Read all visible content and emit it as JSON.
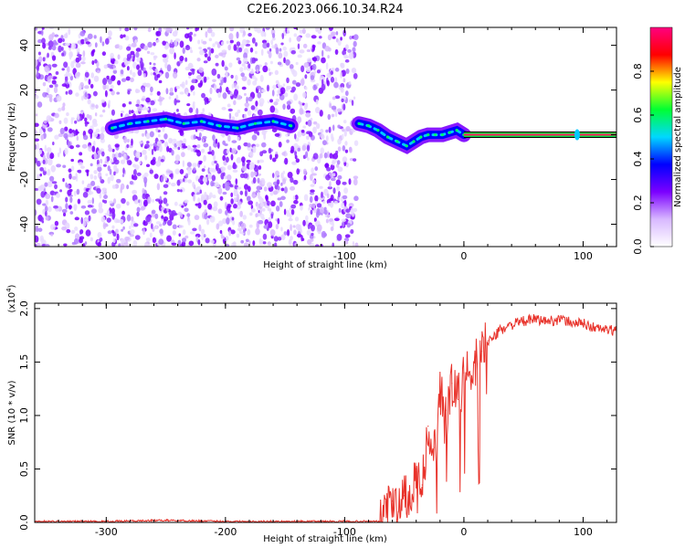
{
  "title": "C2E6.2023.066.10.34.R24",
  "chart_data": [
    {
      "type": "heatmap",
      "xlabel": "Height of straight line (km)",
      "ylabel": "Frequency (Hz)",
      "xlim": [
        -360,
        128
      ],
      "ylim": [
        -50,
        48
      ],
      "x_ticks": [
        "-300",
        "-200",
        "-100",
        "0",
        "100"
      ],
      "x_tick_values": [
        -300,
        -200,
        -100,
        0,
        100
      ],
      "y_ticks": [
        "-40",
        "-20",
        "0",
        "20",
        "40"
      ],
      "y_tick_values": [
        -40,
        -20,
        0,
        20,
        40
      ],
      "noise_region_x": [
        -360,
        -90
      ],
      "first_trace": {
        "x": [
          -295,
          -280,
          -265,
          -250,
          -235,
          -220,
          -205,
          -190,
          -175,
          -160,
          -145
        ],
        "y": [
          3,
          5,
          6,
          7,
          5,
          6,
          4,
          3,
          5,
          6,
          4
        ]
      },
      "second_trace": {
        "x": [
          -88,
          -80,
          -72,
          -64,
          -56,
          -48,
          -42,
          -36,
          -30,
          -24,
          -18,
          -12,
          -6,
          0
        ],
        "y": [
          5,
          4,
          2,
          -1,
          -3,
          -5,
          -3,
          -1,
          0,
          0,
          0,
          1,
          2,
          0
        ]
      },
      "steady_line": {
        "x": [
          0,
          128
        ],
        "y": 0
      },
      "blip": {
        "x": 95,
        "y": 0
      },
      "colorbar": {
        "label": "Normalized spectral amplitude",
        "ticks": [
          "0.0",
          "0.2",
          "0.4",
          "0.6",
          "0.8"
        ],
        "tick_values": [
          0.0,
          0.2,
          0.4,
          0.6,
          0.8
        ],
        "range": [
          0,
          1
        ],
        "colors": [
          "#ffffff",
          "#d8b8ff",
          "#7b00ff",
          "#0000ff",
          "#00d8ff",
          "#00ff33",
          "#ffff00",
          "#ff0000",
          "#ff0080"
        ]
      }
    },
    {
      "type": "line",
      "xlabel": "Height of straight line (km)",
      "ylabel": "SNR (10 * v/v)",
      "multiplier_label": "(x10",
      "multiplier_exp": "4",
      "xlim": [
        -360,
        128
      ],
      "ylim": [
        0,
        2.05
      ],
      "x_ticks": [
        "-300",
        "-200",
        "-100",
        "0",
        "100"
      ],
      "x_tick_values": [
        -300,
        -200,
        -100,
        0,
        100
      ],
      "y_ticks": [
        "0.0",
        "0.5",
        "1.0",
        "1.5",
        "2.0"
      ],
      "y_tick_values": [
        0,
        0.5,
        1.0,
        1.5,
        2.0
      ],
      "series": [
        {
          "color": "#e8322a",
          "x": [
            -360,
            -300,
            -250,
            -200,
            -150,
            -100,
            -70,
            -65,
            -60,
            -55,
            -50,
            -45,
            -40,
            -35,
            -30,
            -25,
            -20,
            -15,
            -10,
            -5,
            0,
            5,
            10,
            15,
            20,
            25,
            30,
            40,
            50,
            60,
            70,
            80,
            90,
            100,
            110,
            120,
            128
          ],
          "y": [
            0.01,
            0.01,
            0.02,
            0.01,
            0.01,
            0.01,
            0.01,
            0.12,
            0.2,
            0.1,
            0.25,
            0.18,
            0.5,
            0.35,
            0.9,
            0.7,
            1.2,
            1.05,
            1.3,
            1.15,
            1.4,
            1.38,
            1.5,
            1.6,
            1.7,
            1.72,
            1.8,
            1.85,
            1.88,
            1.9,
            1.88,
            1.9,
            1.87,
            1.86,
            1.82,
            1.8,
            1.79
          ]
        }
      ]
    }
  ]
}
